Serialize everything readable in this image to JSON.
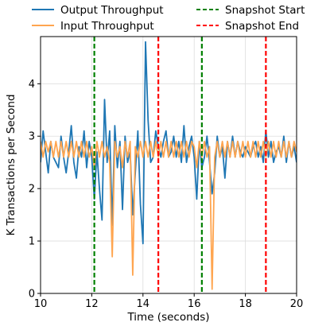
{
  "chart_data": {
    "type": "line",
    "xlabel": "Time (seconds)",
    "ylabel": "K Transactions per Second",
    "xlim": [
      10,
      20
    ],
    "ylim": [
      0,
      4.9
    ],
    "xticks": [
      10,
      12,
      14,
      16,
      18,
      20
    ],
    "yticks": [
      0,
      1,
      2,
      3,
      4
    ],
    "grid": true,
    "legend": "top-center",
    "series": [
      {
        "name": "Output Throughput",
        "color": "#1f77b4",
        "x": [
          10.0,
          10.1,
          10.2,
          10.3,
          10.4,
          10.5,
          10.6,
          10.7,
          10.8,
          10.9,
          11.0,
          11.1,
          11.2,
          11.3,
          11.4,
          11.5,
          11.6,
          11.7,
          11.8,
          11.9,
          12.0,
          12.1,
          12.2,
          12.3,
          12.4,
          12.5,
          12.6,
          12.7,
          12.8,
          12.9,
          13.0,
          13.1,
          13.2,
          13.3,
          13.4,
          13.5,
          13.6,
          13.7,
          13.8,
          13.9,
          14.0,
          14.1,
          14.2,
          14.3,
          14.4,
          14.5,
          14.6,
          14.7,
          14.8,
          14.9,
          15.0,
          15.1,
          15.2,
          15.3,
          15.4,
          15.5,
          15.6,
          15.7,
          15.8,
          15.9,
          16.0,
          16.1,
          16.2,
          16.3,
          16.4,
          16.5,
          16.6,
          16.7,
          16.8,
          16.9,
          17.0,
          17.1,
          17.2,
          17.3,
          17.4,
          17.5,
          17.6,
          17.7,
          17.8,
          17.9,
          18.0,
          18.1,
          18.2,
          18.3,
          18.4,
          18.5,
          18.6,
          18.7,
          18.8,
          18.9,
          19.0,
          19.1,
          19.2,
          19.3,
          19.4,
          19.5,
          19.6,
          19.7,
          19.8,
          19.9,
          20.0
        ],
        "y": [
          2.5,
          3.1,
          2.7,
          2.3,
          2.9,
          2.6,
          2.5,
          2.4,
          3.0,
          2.6,
          2.3,
          2.7,
          3.2,
          2.5,
          2.2,
          2.8,
          2.6,
          3.1,
          2.4,
          2.9,
          2.6,
          1.8,
          2.7,
          2.0,
          1.4,
          3.7,
          2.5,
          3.1,
          1.3,
          3.2,
          2.4,
          2.9,
          1.6,
          3.0,
          2.5,
          2.7,
          1.5,
          2.3,
          3.1,
          1.7,
          0.95,
          4.8,
          3.3,
          2.5,
          2.6,
          3.1,
          2.8,
          2.6,
          2.9,
          3.1,
          2.6,
          2.7,
          3.0,
          2.6,
          2.9,
          2.5,
          3.2,
          2.5,
          2.8,
          3.0,
          2.6,
          1.8,
          2.9,
          2.4,
          2.6,
          3.0,
          2.5,
          1.9,
          2.3,
          3.0,
          2.6,
          2.8,
          2.2,
          2.9,
          2.6,
          3.0,
          2.6,
          2.9,
          2.7,
          2.6,
          2.8,
          2.7,
          2.6,
          2.8,
          2.9,
          2.6,
          2.8,
          2.5,
          3.1,
          2.6,
          2.9,
          2.5,
          2.7,
          2.8,
          2.6,
          3.0,
          2.5,
          2.9,
          2.6,
          2.8,
          2.5
        ]
      },
      {
        "name": "Input Throughput",
        "color": "#ffa54f",
        "x": [
          10.0,
          10.1,
          10.2,
          10.3,
          10.4,
          10.5,
          10.6,
          10.7,
          10.8,
          10.9,
          11.0,
          11.1,
          11.2,
          11.3,
          11.4,
          11.5,
          11.6,
          11.7,
          11.8,
          11.9,
          12.0,
          12.1,
          12.2,
          12.3,
          12.4,
          12.5,
          12.6,
          12.7,
          12.8,
          12.9,
          13.0,
          13.1,
          13.2,
          13.3,
          13.4,
          13.5,
          13.6,
          13.7,
          13.8,
          13.9,
          14.0,
          14.1,
          14.2,
          14.3,
          14.4,
          14.5,
          14.6,
          14.7,
          14.8,
          14.9,
          15.0,
          15.1,
          15.2,
          15.3,
          15.4,
          15.5,
          15.6,
          15.7,
          15.8,
          15.9,
          16.0,
          16.1,
          16.2,
          16.3,
          16.4,
          16.5,
          16.6,
          16.7,
          16.8,
          16.9,
          17.0,
          17.1,
          17.2,
          17.3,
          17.4,
          17.5,
          17.6,
          17.7,
          17.8,
          17.9,
          18.0,
          18.1,
          18.2,
          18.3,
          18.4,
          18.5,
          18.6,
          18.7,
          18.8,
          18.9,
          19.0,
          19.1,
          19.2,
          19.3,
          19.4,
          19.5,
          19.6,
          19.7,
          19.8,
          19.9,
          20.0
        ],
        "y": [
          2.9,
          2.6,
          2.9,
          2.7,
          2.9,
          2.6,
          2.9,
          2.6,
          2.9,
          2.6,
          2.9,
          2.6,
          2.9,
          2.6,
          2.9,
          2.6,
          2.9,
          2.6,
          2.9,
          2.6,
          2.8,
          2.4,
          2.9,
          2.6,
          2.9,
          2.6,
          2.8,
          2.5,
          0.7,
          2.9,
          2.6,
          2.8,
          2.4,
          2.9,
          2.6,
          2.9,
          0.35,
          2.8,
          2.6,
          2.9,
          2.6,
          2.9,
          2.6,
          2.9,
          2.6,
          2.9,
          2.6,
          2.9,
          2.6,
          2.9,
          2.6,
          2.9,
          2.6,
          2.9,
          2.6,
          2.9,
          2.6,
          2.9,
          2.6,
          2.9,
          2.8,
          2.4,
          2.9,
          2.6,
          2.9,
          2.6,
          2.8,
          0.08,
          2.6,
          2.9,
          2.6,
          2.9,
          2.6,
          2.9,
          2.6,
          2.9,
          2.6,
          2.9,
          2.6,
          2.9,
          2.6,
          2.9,
          2.6,
          2.9,
          2.6,
          2.9,
          2.6,
          2.9,
          2.6,
          2.9,
          2.6,
          2.9,
          2.6,
          2.9,
          2.6,
          2.9,
          2.6,
          2.9,
          2.6,
          2.9,
          2.7
        ]
      }
    ],
    "vlines": [
      {
        "name": "Snapshot Start",
        "color": "#008000",
        "x": [
          12.1,
          16.3
        ]
      },
      {
        "name": "Snapshot End",
        "color": "#ff0000",
        "x": [
          14.6,
          18.8
        ]
      }
    ]
  }
}
